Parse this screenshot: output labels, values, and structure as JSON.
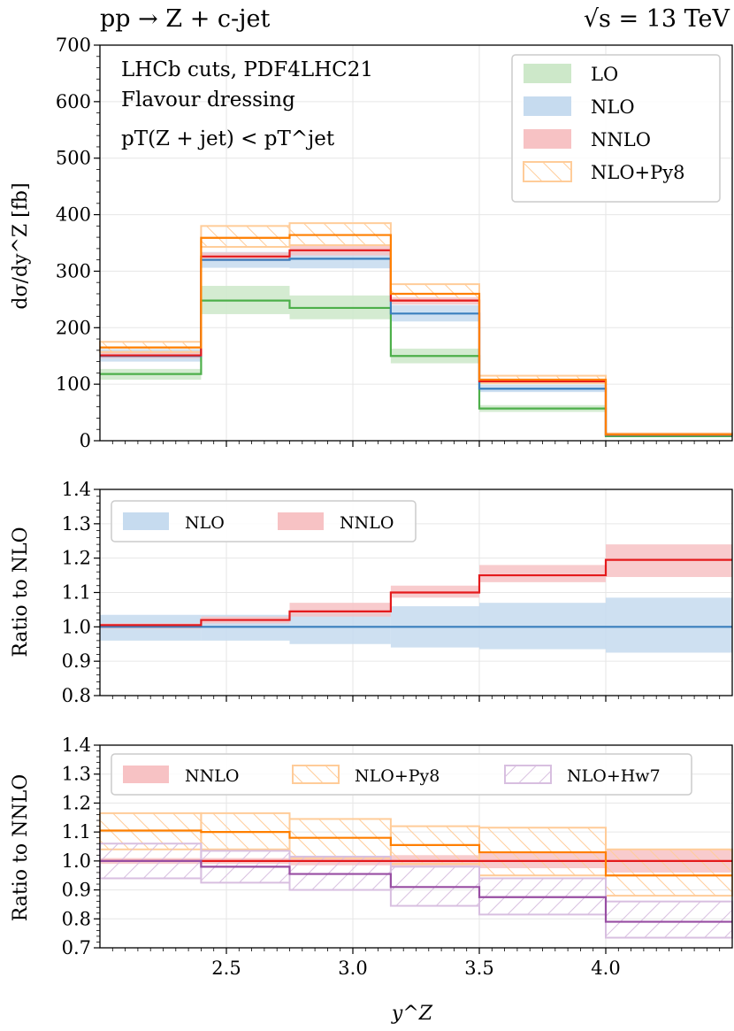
{
  "header": {
    "process": "pp → Z + c-jet",
    "energy": "√s = 13 TeV"
  },
  "annotations": {
    "line1": "LHCb cuts, PDF4LHC21",
    "line2": "Flavour dressing",
    "line3": "pT(Z + jet) < pT^jet"
  },
  "colors": {
    "LO": "#4daf4a",
    "NLO": "#3a7fbd",
    "NNLO": "#e41a1c",
    "NLO+Py8": "#ff7f00",
    "NLO+Hw7": "#984ea3"
  },
  "chart_data": [
    {
      "type": "histogram",
      "panel": "main",
      "title": "pp → Z + c-jet",
      "xlabel": "y^Z",
      "ylabel": "dσ/dy^Z [fb]",
      "bin_edges": [
        2.0,
        2.4,
        2.75,
        3.15,
        3.5,
        4.0,
        4.5
      ],
      "xlim": [
        2.0,
        4.5
      ],
      "ylim": [
        0,
        700
      ],
      "yticks": [
        "0",
        "100",
        "200",
        "300",
        "400",
        "500",
        "600",
        "700"
      ],
      "xticks": [
        2.5,
        3.0,
        3.5,
        4.0
      ],
      "legend_position": "upper right",
      "series": [
        {
          "name": "LO",
          "style": "band",
          "central": [
            118,
            248,
            235,
            150,
            57,
            8
          ],
          "lower": [
            108,
            224,
            215,
            137,
            51,
            7
          ],
          "upper": [
            127,
            274,
            257,
            163,
            63,
            9
          ]
        },
        {
          "name": "NLO",
          "style": "band",
          "central": [
            150,
            320,
            322,
            225,
            92,
            10
          ],
          "lower": [
            140,
            306,
            305,
            211,
            86,
            9
          ],
          "upper": [
            162,
            334,
            340,
            240,
            99,
            11
          ]
        },
        {
          "name": "NNLO",
          "style": "band",
          "central": [
            151,
            326,
            337,
            248,
            105,
            11
          ],
          "lower": [
            146,
            318,
            328,
            241,
            101,
            10.5
          ],
          "upper": [
            156,
            333,
            345,
            254,
            109,
            12
          ]
        },
        {
          "name": "NLO+Py8",
          "style": "hatch",
          "central": [
            165,
            359,
            364,
            260,
            108,
            11
          ],
          "lower": [
            157,
            343,
            346,
            248,
            102,
            10
          ],
          "upper": [
            175,
            380,
            385,
            277,
            115,
            13
          ]
        }
      ]
    },
    {
      "type": "histogram",
      "panel": "ratio_nlo",
      "ylabel": "Ratio to NLO",
      "bin_edges": [
        2.0,
        2.4,
        2.75,
        3.15,
        3.5,
        4.0,
        4.5
      ],
      "xlim": [
        2.0,
        4.5
      ],
      "ylim": [
        0.8,
        1.4
      ],
      "yticks": [
        "0.8",
        "0.9",
        "1.0",
        "1.1",
        "1.2",
        "1.3",
        "1.4"
      ],
      "legend_position": "upper left",
      "series": [
        {
          "name": "NLO",
          "style": "band",
          "central": [
            1.0,
            1.0,
            1.0,
            1.0,
            1.0,
            1.0
          ],
          "lower": [
            0.96,
            0.96,
            0.95,
            0.94,
            0.935,
            0.925
          ],
          "upper": [
            1.035,
            1.035,
            1.05,
            1.06,
            1.07,
            1.085
          ]
        },
        {
          "name": "NNLO",
          "style": "band",
          "central": [
            1.005,
            1.02,
            1.045,
            1.1,
            1.15,
            1.195
          ],
          "lower": [
            0.995,
            1.01,
            1.03,
            1.085,
            1.13,
            1.145
          ],
          "upper": [
            1.01,
            1.03,
            1.07,
            1.12,
            1.18,
            1.24
          ]
        }
      ]
    },
    {
      "type": "histogram",
      "panel": "ratio_nnlo",
      "ylabel": "Ratio to NNLO",
      "xlabel": "y^Z",
      "bin_edges": [
        2.0,
        2.4,
        2.75,
        3.15,
        3.5,
        4.0,
        4.5
      ],
      "xlim": [
        2.0,
        4.5
      ],
      "ylim": [
        0.7,
        1.4
      ],
      "yticks": [
        "0.7",
        "0.8",
        "0.9",
        "1.0",
        "1.1",
        "1.2",
        "1.3",
        "1.4"
      ],
      "xticks": [
        "2.5",
        "3.0",
        "3.5",
        "4.0"
      ],
      "legend_position": "upper center",
      "series": [
        {
          "name": "NNLO",
          "style": "band",
          "central": [
            1.0,
            1.0,
            1.0,
            1.0,
            1.0,
            1.0
          ],
          "lower": [
            0.99,
            0.99,
            0.985,
            0.98,
            0.975,
            0.96
          ],
          "upper": [
            1.01,
            1.01,
            1.015,
            1.02,
            1.03,
            1.04
          ]
        },
        {
          "name": "NLO+Py8",
          "style": "hatch",
          "central": [
            1.105,
            1.1,
            1.08,
            1.055,
            1.03,
            0.95
          ],
          "lower": [
            1.04,
            1.04,
            1.01,
            0.99,
            0.95,
            0.88
          ],
          "upper": [
            1.165,
            1.165,
            1.145,
            1.12,
            1.115,
            1.04
          ]
        },
        {
          "name": "NLO+Hw7",
          "style": "hatch",
          "central": [
            1.0,
            0.98,
            0.955,
            0.91,
            0.875,
            0.79
          ],
          "lower": [
            0.94,
            0.925,
            0.9,
            0.845,
            0.815,
            0.735
          ],
          "upper": [
            1.06,
            1.035,
            1.015,
            0.98,
            0.94,
            0.86
          ]
        }
      ]
    }
  ]
}
